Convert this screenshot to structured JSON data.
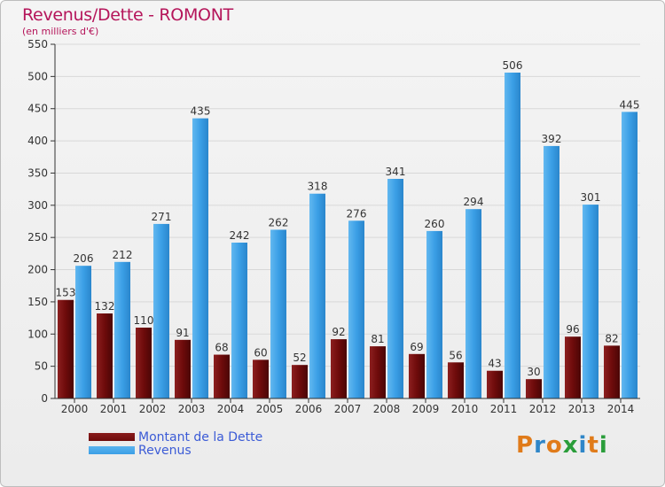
{
  "header": {
    "title": "Revenus/Dette - ROMONT",
    "subtitle": "(en milliers d'€)"
  },
  "colors": {
    "dette": "#6e0b0b",
    "revenus": "#3b9fe6",
    "axis": "#333333",
    "grid": "#d8d8d8",
    "title": "#b5155a",
    "legend_text": "#3b5bd6"
  },
  "legend": {
    "items": [
      {
        "label": "Montant de la Dette",
        "color_key": "dette"
      },
      {
        "label": "Revenus",
        "color_key": "revenus"
      }
    ]
  },
  "logo": {
    "text": "Proxiti",
    "letters": [
      {
        "ch": "P",
        "color": "#e07b1a"
      },
      {
        "ch": "r",
        "color": "#2f86c8"
      },
      {
        "ch": "o",
        "color": "#e07b1a"
      },
      {
        "ch": "x",
        "color": "#2a9d3a"
      },
      {
        "ch": "i",
        "color": "#2f86c8"
      },
      {
        "ch": "t",
        "color": "#e07b1a"
      },
      {
        "ch": "i",
        "color": "#2a9d3a"
      }
    ]
  },
  "chart_data": {
    "type": "bar",
    "title": "Revenus/Dette - ROMONT",
    "subtitle": "(en milliers d'€)",
    "categories": [
      "2000",
      "2001",
      "2002",
      "2003",
      "2004",
      "2005",
      "2006",
      "2007",
      "2008",
      "2009",
      "2010",
      "2011",
      "2012",
      "2013",
      "2014"
    ],
    "series": [
      {
        "name": "Montant de la Dette",
        "color_key": "dette",
        "values": [
          153,
          132,
          110,
          91,
          68,
          60,
          52,
          92,
          81,
          69,
          56,
          43,
          30,
          96,
          82
        ]
      },
      {
        "name": "Revenus",
        "color_key": "revenus",
        "values": [
          206,
          212,
          271,
          435,
          242,
          262,
          318,
          276,
          341,
          260,
          294,
          506,
          392,
          301,
          445
        ]
      }
    ],
    "ylim": [
      0,
      550
    ],
    "yticks": [
      0,
      50,
      100,
      150,
      200,
      250,
      300,
      350,
      400,
      450,
      500,
      550
    ],
    "grid": true,
    "legend_position": "bottom-left"
  }
}
